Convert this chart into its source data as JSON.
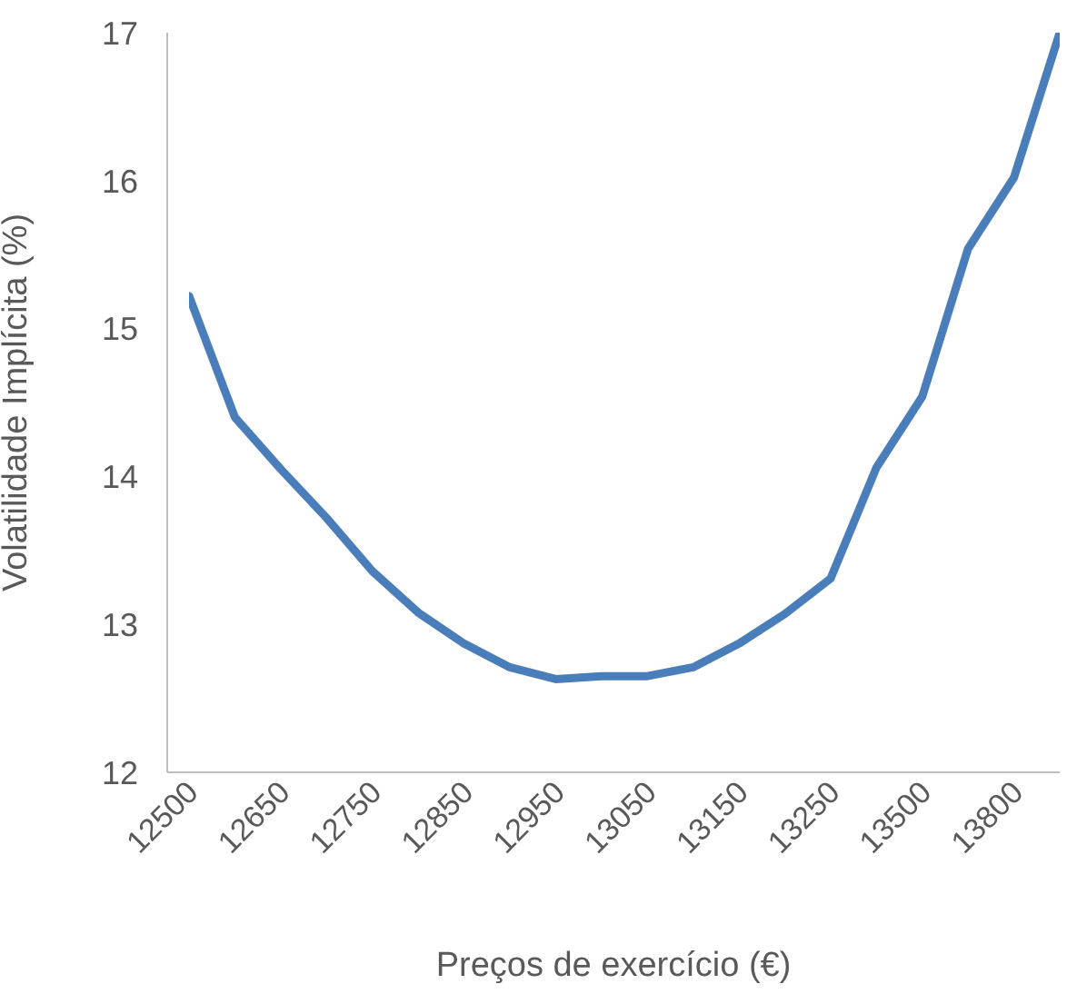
{
  "chart_data": {
    "type": "line",
    "xlabel": "Preços de exercício (€)",
    "ylabel": "Volatilidade Implícita (%)",
    "categories": [
      "12500",
      null,
      "12650",
      null,
      "12750",
      null,
      "12850",
      null,
      "12950",
      null,
      "13050",
      null,
      "13150",
      null,
      "13250",
      null,
      "13500",
      null,
      "13800",
      null
    ],
    "series": [
      {
        "color": "#4a7ebb",
        "values": [
          15.22,
          14.4,
          14.05,
          13.72,
          13.36,
          13.08,
          12.87,
          12.71,
          12.63,
          12.65,
          12.65,
          12.71,
          12.87,
          13.07,
          13.31,
          14.06,
          14.54,
          15.54,
          16.02,
          17.0
        ]
      }
    ],
    "ylim": [
      12,
      17
    ],
    "yticks": [
      12,
      13,
      14,
      15,
      16,
      17
    ],
    "marker": "none",
    "line_style": "solid"
  }
}
